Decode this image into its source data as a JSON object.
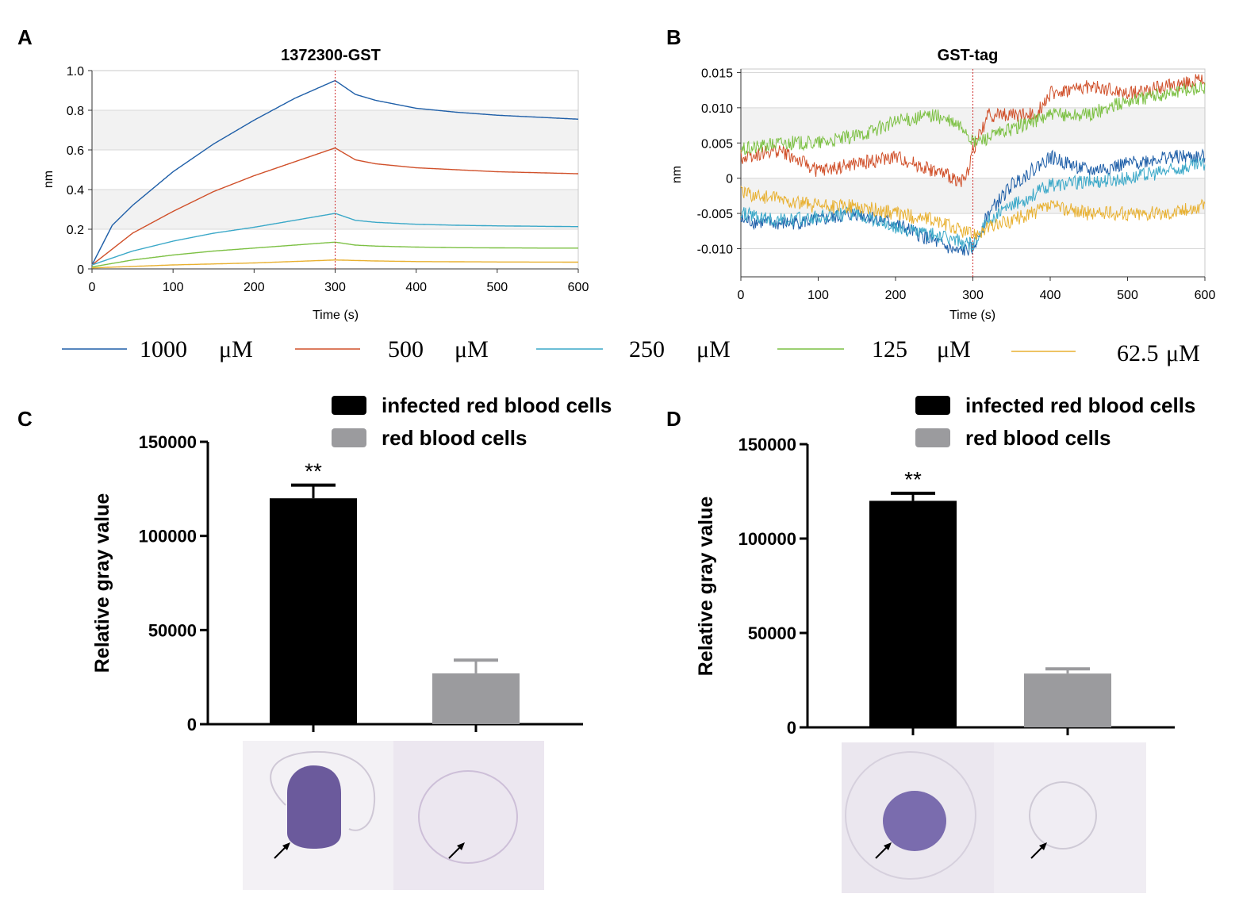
{
  "panels": {
    "a": "A",
    "b": "B",
    "c": "C",
    "d": "D"
  },
  "concentration_legend": [
    {
      "label": "1000",
      "unit": "μM",
      "color": "#1f5fa8"
    },
    {
      "label": "500",
      "unit": "μM",
      "color": "#d0502a"
    },
    {
      "label": "250",
      "unit": "μM",
      "color": "#3aa8c8"
    },
    {
      "label": "125",
      "unit": "μM",
      "color": "#7cc043"
    },
    {
      "label": "62.5",
      "unit": "μM",
      "color": "#e8b030"
    }
  ],
  "chart_data": [
    {
      "id": "A",
      "type": "line",
      "title": "1372300-GST",
      "xlabel": "Time (s)",
      "ylabel": "nm",
      "xlim": [
        0,
        600
      ],
      "ylim": [
        0,
        1.0
      ],
      "xticks": [
        0,
        100,
        200,
        300,
        400,
        500,
        600
      ],
      "yticks": [
        0,
        0.2,
        0.4,
        0.6,
        0.8,
        1.0
      ],
      "ytick_labels": [
        "0",
        "0.2",
        "0.4",
        "0.6",
        "0.8",
        "1.0"
      ],
      "marker_x": 300,
      "series": [
        {
          "name": "1000 μM",
          "color": "#1f5fa8",
          "x": [
            0,
            25,
            50,
            100,
            150,
            200,
            250,
            300,
            325,
            350,
            400,
            450,
            500,
            550,
            600
          ],
          "values": [
            0.02,
            0.22,
            0.32,
            0.49,
            0.63,
            0.75,
            0.86,
            0.95,
            0.88,
            0.85,
            0.81,
            0.79,
            0.775,
            0.765,
            0.755
          ]
        },
        {
          "name": "500 μM",
          "color": "#d0502a",
          "x": [
            0,
            50,
            100,
            150,
            200,
            250,
            300,
            325,
            350,
            400,
            450,
            500,
            550,
            600
          ],
          "values": [
            0.02,
            0.18,
            0.29,
            0.39,
            0.47,
            0.54,
            0.61,
            0.55,
            0.53,
            0.51,
            0.5,
            0.49,
            0.485,
            0.48
          ]
        },
        {
          "name": "250 μM",
          "color": "#3aa8c8",
          "x": [
            0,
            50,
            100,
            150,
            200,
            250,
            300,
            325,
            350,
            400,
            450,
            500,
            550,
            600
          ],
          "values": [
            0.02,
            0.09,
            0.14,
            0.18,
            0.21,
            0.245,
            0.28,
            0.245,
            0.235,
            0.225,
            0.22,
            0.217,
            0.215,
            0.213
          ]
        },
        {
          "name": "125 μM",
          "color": "#7cc043",
          "x": [
            0,
            50,
            100,
            150,
            200,
            250,
            300,
            325,
            350,
            400,
            450,
            500,
            550,
            600
          ],
          "values": [
            0.01,
            0.045,
            0.07,
            0.09,
            0.105,
            0.12,
            0.135,
            0.12,
            0.115,
            0.11,
            0.107,
            0.106,
            0.105,
            0.105
          ]
        },
        {
          "name": "62.5 μM",
          "color": "#e8b030",
          "x": [
            0,
            100,
            200,
            300,
            350,
            400,
            500,
            600
          ],
          "values": [
            0.005,
            0.02,
            0.03,
            0.045,
            0.04,
            0.037,
            0.035,
            0.034
          ]
        }
      ]
    },
    {
      "id": "B",
      "type": "line",
      "title": "GST-tag",
      "xlabel": "Time (s)",
      "ylabel": "nm",
      "xlim": [
        0,
        600
      ],
      "ylim": [
        -0.014,
        0.0155
      ],
      "xticks": [
        0,
        100,
        200,
        300,
        400,
        500,
        600
      ],
      "yticks": [
        -0.01,
        -0.005,
        0,
        0.005,
        0.01,
        0.015
      ],
      "ytick_labels": [
        "-0.010",
        "-0.005",
        "0",
        "0.005",
        "0.010",
        "0.015"
      ],
      "marker_x": 300,
      "series": [
        {
          "name": "1000 μM",
          "color": "#1f5fa8",
          "x": [
            0,
            50,
            100,
            150,
            200,
            250,
            280,
            300,
            320,
            350,
            400,
            450,
            500,
            550,
            600
          ],
          "values": [
            -0.006,
            -0.0065,
            -0.006,
            -0.005,
            -0.0065,
            -0.009,
            -0.0105,
            -0.01,
            -0.005,
            -0.001,
            0.003,
            0.001,
            0.002,
            0.003,
            0.003
          ]
        },
        {
          "name": "500 μM",
          "color": "#d0502a",
          "x": [
            0,
            50,
            100,
            150,
            200,
            250,
            290,
            300,
            320,
            350,
            380,
            400,
            450,
            500,
            550,
            600
          ],
          "values": [
            0.003,
            0.004,
            0.001,
            0.002,
            0.003,
            0.001,
            -0.0005,
            0.004,
            0.009,
            0.009,
            0.009,
            0.012,
            0.013,
            0.012,
            0.013,
            0.014
          ]
        },
        {
          "name": "250 μM",
          "color": "#3aa8c8",
          "x": [
            0,
            50,
            100,
            150,
            200,
            250,
            300,
            320,
            350,
            400,
            450,
            500,
            550,
            600
          ],
          "values": [
            -0.005,
            -0.006,
            -0.0055,
            -0.005,
            -0.007,
            -0.008,
            -0.0095,
            -0.006,
            -0.004,
            -0.001,
            -0.0005,
            0.0,
            0.001,
            0.002
          ]
        },
        {
          "name": "125 μM",
          "color": "#7cc043",
          "x": [
            0,
            50,
            100,
            150,
            200,
            250,
            290,
            300,
            350,
            400,
            450,
            500,
            550,
            600
          ],
          "values": [
            0.004,
            0.005,
            0.005,
            0.006,
            0.008,
            0.009,
            0.007,
            0.005,
            0.007,
            0.009,
            0.009,
            0.011,
            0.012,
            0.013
          ]
        },
        {
          "name": "62.5 μM",
          "color": "#e8b030",
          "x": [
            0,
            50,
            100,
            150,
            200,
            250,
            300,
            320,
            350,
            400,
            450,
            500,
            550,
            600
          ],
          "values": [
            -0.002,
            -0.003,
            -0.004,
            -0.004,
            -0.005,
            -0.006,
            -0.008,
            -0.007,
            -0.006,
            -0.004,
            -0.005,
            -0.005,
            -0.005,
            -0.004
          ]
        }
      ]
    },
    {
      "id": "C",
      "type": "bar",
      "ylabel": "Relative gray value",
      "ylim": [
        0,
        150000
      ],
      "yticks": [
        0,
        50000,
        100000,
        150000
      ],
      "categories": [
        "infected red blood cells",
        "red blood cells"
      ],
      "values": [
        120000,
        27000
      ],
      "errors": [
        7000,
        7000
      ],
      "colors": [
        "#000000",
        "#9b9b9e"
      ],
      "annotation": "**"
    },
    {
      "id": "D",
      "type": "bar",
      "ylabel": "Relative gray value",
      "ylim": [
        0,
        150000
      ],
      "yticks": [
        0,
        50000,
        100000,
        150000
      ],
      "categories": [
        "infected red blood cells",
        "red blood cells"
      ],
      "values": [
        120000,
        28500
      ],
      "errors": [
        4000,
        2500
      ],
      "colors": [
        "#000000",
        "#9b9b9e"
      ],
      "annotation": "**"
    }
  ]
}
